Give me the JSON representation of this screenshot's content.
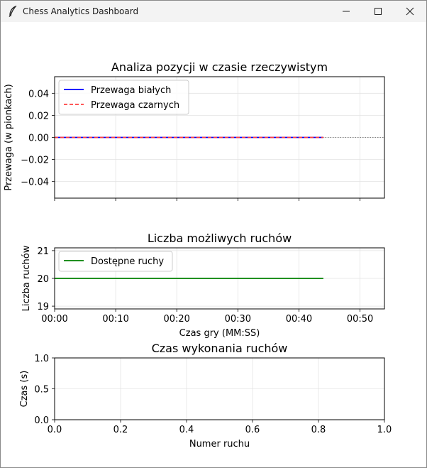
{
  "window": {
    "title": "Chess Analytics Dashboard",
    "icon": "feather-icon",
    "controls": [
      "minimize-icon",
      "maximize-icon",
      "close-icon"
    ]
  },
  "chart_data": [
    {
      "type": "line",
      "title": "Analiza pozycji w czasie rzeczywistym",
      "xlabel": "",
      "ylabel": "Przewaga (w pionkach)",
      "xlim": [
        0,
        54
      ],
      "ylim": [
        -0.055,
        0.055
      ],
      "xticks": [
        0,
        10,
        20,
        30,
        40,
        50
      ],
      "yticks": [
        -0.04,
        -0.02,
        0.0,
        0.02,
        0.04
      ],
      "ytick_labels": [
        "−0.04",
        "−0.02",
        "0.00",
        "0.02",
        "0.04"
      ],
      "grid": true,
      "legend_position": "upper-left",
      "reference_line": {
        "y": 0,
        "style": "dotted",
        "color": "#808080"
      },
      "series": [
        {
          "name": "Przewaga białych",
          "x": [
            0,
            44
          ],
          "y": [
            0,
            0
          ],
          "color": "#0000ff",
          "style": "solid"
        },
        {
          "name": "Przewaga czarnych",
          "x": [
            0,
            44
          ],
          "y": [
            0,
            0
          ],
          "color": "#ff4040",
          "style": "dashed"
        }
      ]
    },
    {
      "type": "line",
      "title": "Liczba możliwych ruchów",
      "xlabel": "Czas gry (MM:SS)",
      "ylabel": "Liczba ruchów",
      "xlim": [
        0,
        54
      ],
      "ylim": [
        18.9,
        21.1
      ],
      "xticks": [
        0,
        10,
        20,
        30,
        40,
        50
      ],
      "xtick_labels": [
        "00:00",
        "00:10",
        "00:20",
        "00:30",
        "00:40",
        "00:50"
      ],
      "yticks": [
        19,
        20,
        21
      ],
      "ytick_labels": [
        "19",
        "20",
        "21"
      ],
      "grid": true,
      "legend_position": "upper-left",
      "series": [
        {
          "name": "Dostępne ruchy",
          "x": [
            0,
            44
          ],
          "y": [
            20,
            20
          ],
          "color": "#008000",
          "style": "solid"
        }
      ]
    },
    {
      "type": "line",
      "title": "Czas wykonania ruchów",
      "xlabel": "Numer ruchu",
      "ylabel": "Czas (s)",
      "xlim": [
        0,
        1
      ],
      "ylim": [
        0,
        1
      ],
      "xticks": [
        0,
        0.2,
        0.4,
        0.6,
        0.8,
        1.0
      ],
      "xtick_labels": [
        "0.0",
        "0.2",
        "0.4",
        "0.6",
        "0.8",
        "1.0"
      ],
      "yticks": [
        0,
        0.5,
        1.0
      ],
      "ytick_labels": [
        "0.0",
        "0.5",
        "1.0"
      ],
      "grid": true,
      "series": []
    }
  ]
}
